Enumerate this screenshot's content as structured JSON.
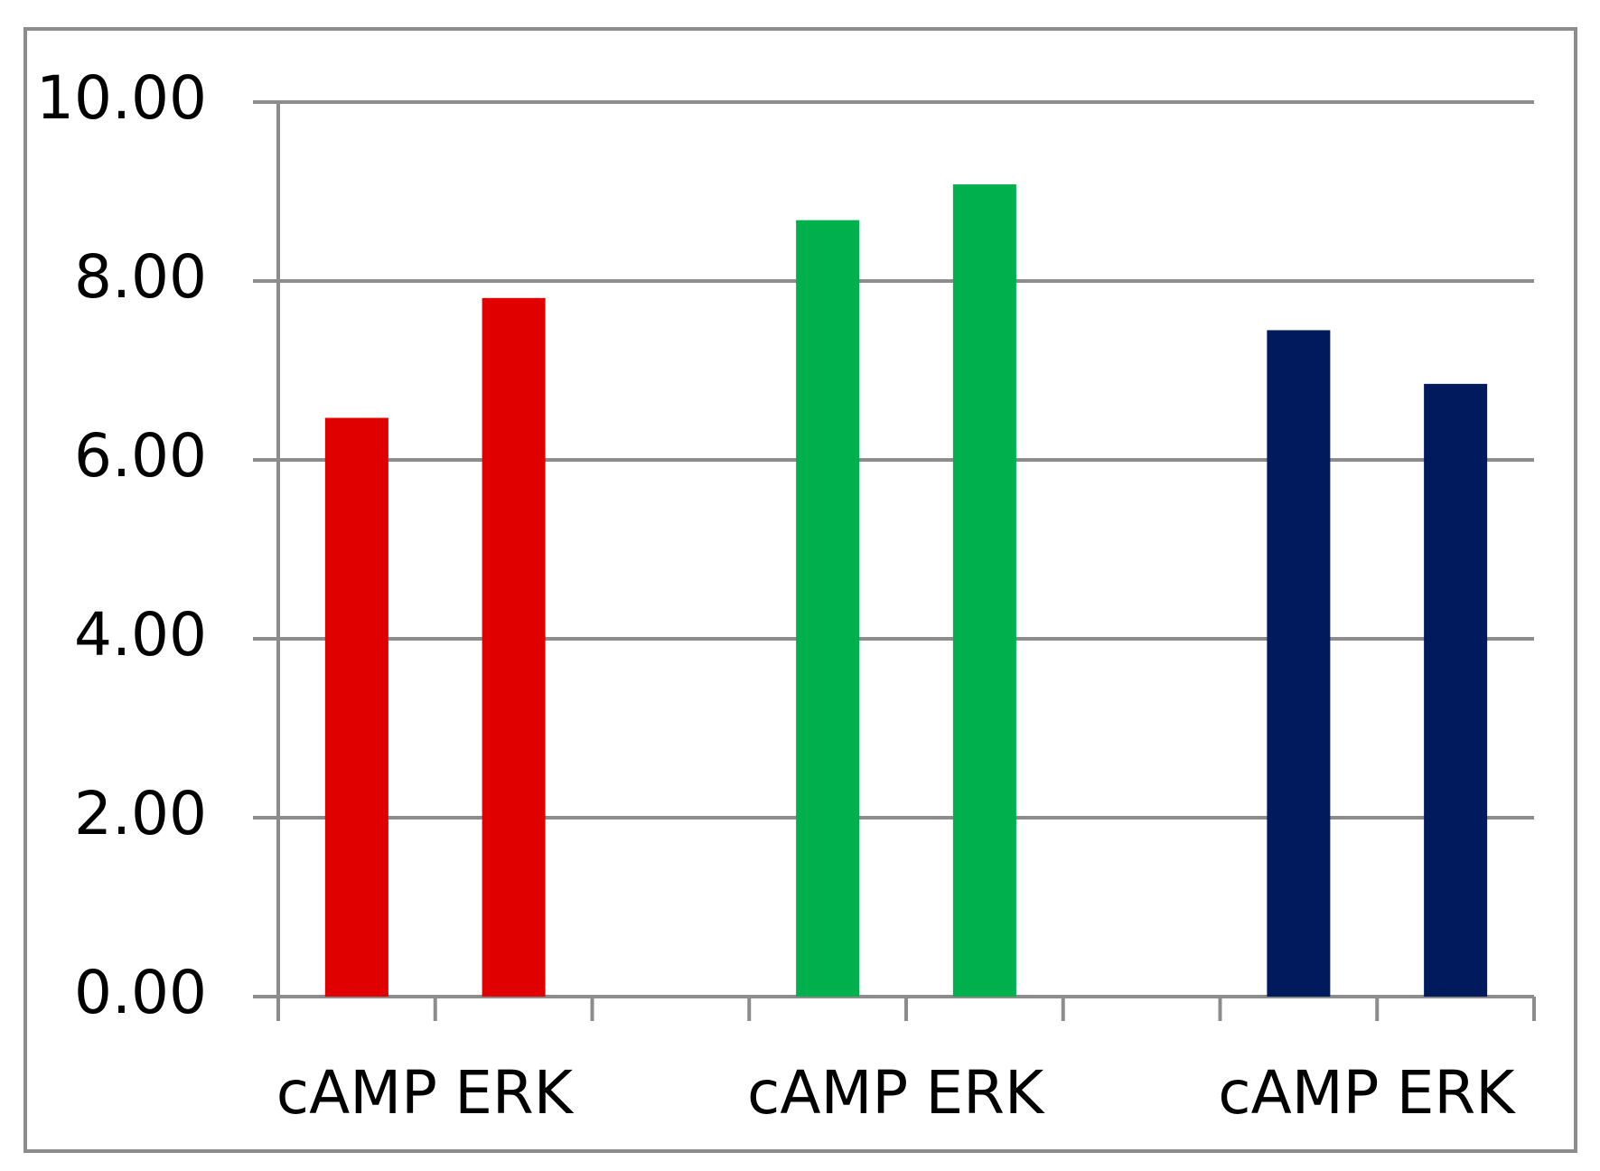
{
  "chart_data": {
    "type": "bar",
    "categories": [
      "cAMP",
      "ERK",
      null,
      "cAMP",
      "ERK",
      null,
      "cAMP",
      "ERK"
    ],
    "values": [
      6.47,
      7.81,
      null,
      8.68,
      9.08,
      null,
      7.45,
      6.85
    ],
    "colors": [
      "#e00000",
      "#e00000",
      null,
      "#00b04c",
      "#00b04c",
      null,
      "#001a5e",
      "#001a5e"
    ],
    "ylim": [
      0,
      10
    ],
    "yticks": [
      {
        "value": 0,
        "label": "0.00"
      },
      {
        "value": 2,
        "label": "2.00"
      },
      {
        "value": 4,
        "label": "4.00"
      },
      {
        "value": 6,
        "label": "6.00"
      },
      {
        "value": 8,
        "label": "8.00"
      },
      {
        "value": 10,
        "label": "10.00"
      }
    ],
    "grid": true
  }
}
